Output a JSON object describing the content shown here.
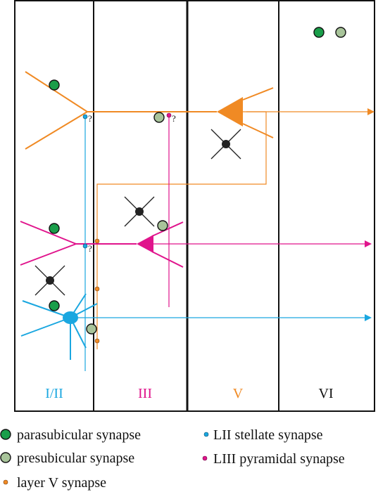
{
  "layers": [
    {
      "label": "I/II",
      "color": "#1aa7e0"
    },
    {
      "label": "III",
      "color": "#e0148c"
    },
    {
      "label": "V",
      "color": "#f08a24"
    },
    {
      "label": "VI",
      "color": "#111111"
    }
  ],
  "question_mark": "?",
  "legend": [
    {
      "label": "parasubicular synapse",
      "color": "#1a9e4a",
      "marker": "large-circle"
    },
    {
      "label": "presubicular synapse",
      "color": "#a8c49a",
      "marker": "large-circle"
    },
    {
      "label": "layer V synapse",
      "color": "#f08a24",
      "marker": "small-dot"
    },
    {
      "label": "LII stellate synapse",
      "color": "#1aa7e0",
      "marker": "small-dot"
    },
    {
      "label": "LIII pyramidal synapse",
      "color": "#e0148c",
      "marker": "small-dot"
    }
  ],
  "colors": {
    "orange": "#f08a24",
    "magenta": "#e0148c",
    "cyan": "#1aa7e0",
    "parasubicular": "#1a9e4a",
    "presubicular": "#a8c49a",
    "interneuron": "#222222"
  }
}
